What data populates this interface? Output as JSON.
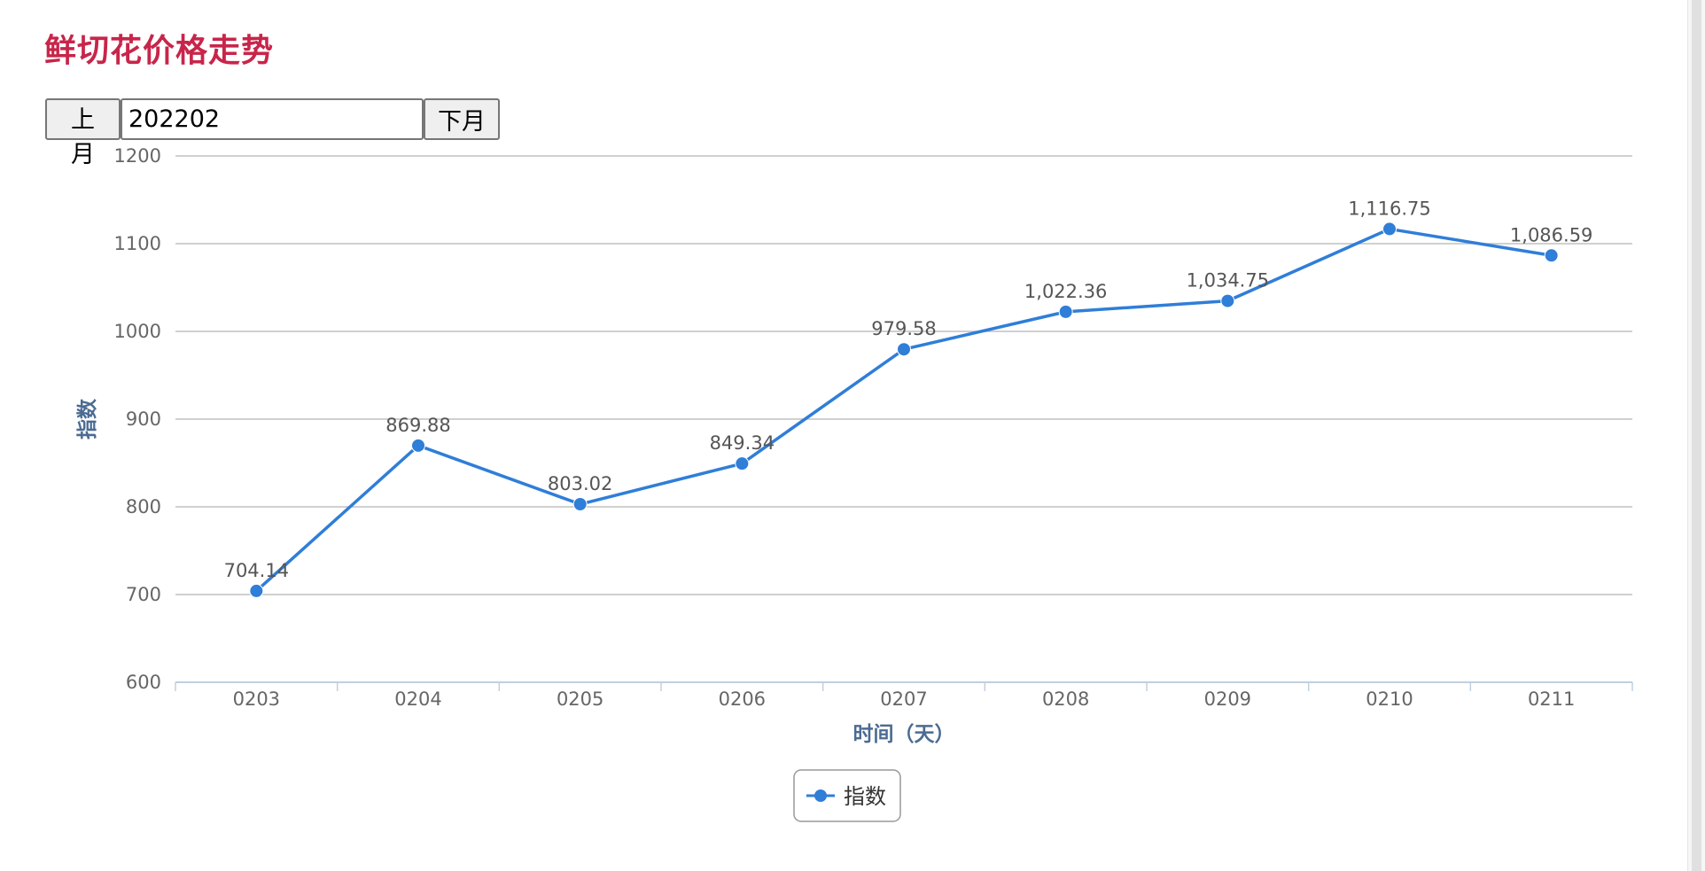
{
  "page": {
    "title": "鲜切花价格走势"
  },
  "controls": {
    "prev_label": "上月",
    "month_value": "202202",
    "next_label": "下月"
  },
  "colors": {
    "title": "#c8254a",
    "series": "#2f7ed8",
    "axis_title": "#4b6b92",
    "grid": "#c0c0c0"
  },
  "chart_data": {
    "type": "line",
    "title": "",
    "xlabel": "时间（天）",
    "ylabel": "指数",
    "categories": [
      "0203",
      "0204",
      "0205",
      "0206",
      "0207",
      "0208",
      "0209",
      "0210",
      "0211"
    ],
    "series": [
      {
        "name": "指数",
        "values": [
          704.14,
          869.88,
          803.02,
          849.34,
          979.58,
          1022.36,
          1034.75,
          1116.75,
          1086.59
        ],
        "data_labels": [
          "704.14",
          "869.88",
          "803.02",
          "849.34",
          "979.58",
          "1,022.36",
          "1,034.75",
          "1,116.75",
          "1,086.59"
        ]
      }
    ],
    "ylim": [
      600,
      1200
    ],
    "yticks": [
      600,
      700,
      800,
      900,
      1000,
      1100,
      1200
    ],
    "grid": true,
    "legend_position": "bottom-center",
    "markers": "circle"
  }
}
